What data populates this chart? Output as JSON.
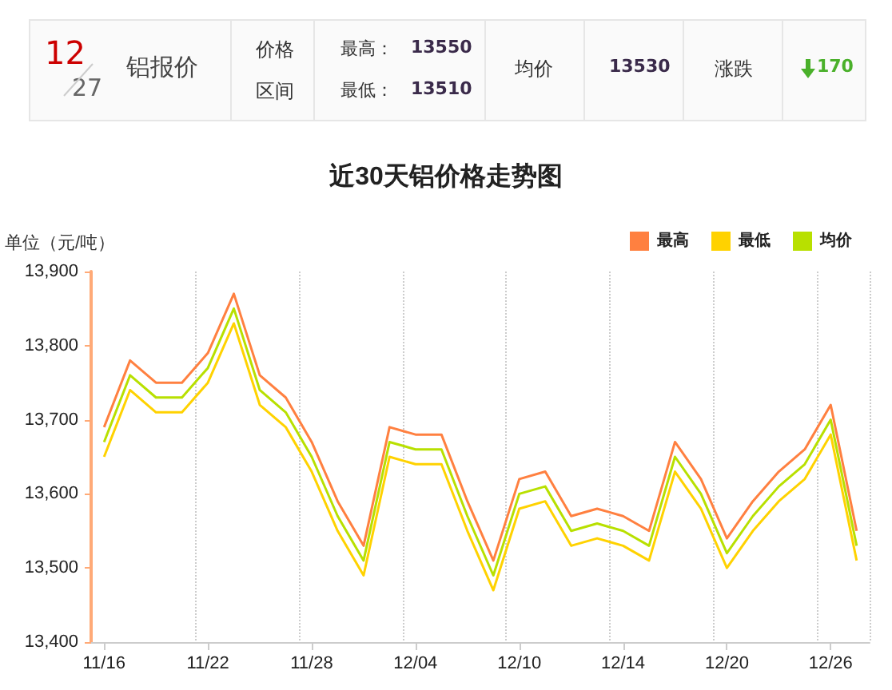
{
  "chart_data": [
    {
      "type": "other",
      "annotations": [
        "12",
        "27",
        "铝报价",
        "价格",
        "区间",
        "最高：",
        "13550",
        "最低：",
        "13510",
        "均价",
        "13530",
        "涨跌",
        "170"
      ]
    },
    {
      "type": "line",
      "title": "近30天铝价格走势图",
      "ylabel": "单位（元/吨）",
      "categories": [
        "11/16",
        null,
        null,
        null,
        "11/22",
        null,
        null,
        null,
        "11/28",
        null,
        null,
        null,
        "12/04",
        null,
        null,
        null,
        "12/10",
        null,
        null,
        null,
        "12/14",
        null,
        null,
        null,
        "12/20",
        null,
        null,
        null,
        "12/26",
        null
      ],
      "series": [
        {
          "name": "最高",
          "color": "#ff8040",
          "values": [
            13690,
            13780,
            13750,
            13750,
            13790,
            13870,
            13760,
            13730,
            13670,
            13590,
            13530,
            13690,
            13680,
            13680,
            13590,
            13510,
            13620,
            13630,
            13570,
            13580,
            13570,
            13550,
            13670,
            13620,
            13540,
            13590,
            13630,
            13660,
            13720,
            13550
          ]
        },
        {
          "name": "最低",
          "color": "#ffd200",
          "values": [
            13650,
            13740,
            13710,
            13710,
            13750,
            13830,
            13720,
            13690,
            13630,
            13550,
            13490,
            13650,
            13640,
            13640,
            13550,
            13470,
            13580,
            13590,
            13530,
            13540,
            13530,
            13510,
            13630,
            13580,
            13500,
            13550,
            13590,
            13620,
            13680,
            13510
          ]
        },
        {
          "name": "均价",
          "color": "#b8e000",
          "values": [
            13670,
            13760,
            13730,
            13730,
            13770,
            13850,
            13740,
            13710,
            13650,
            13570,
            13510,
            13670,
            13660,
            13660,
            13570,
            13490,
            13600,
            13610,
            13550,
            13560,
            13550,
            13530,
            13650,
            13600,
            13520,
            13570,
            13610,
            13640,
            13700,
            13530
          ]
        }
      ],
      "ylim": [
        13400,
        13900
      ],
      "yticks": [
        {
          "value": 13400,
          "label": "13,400"
        },
        {
          "value": 13500,
          "label": "13,500"
        },
        {
          "value": 13600,
          "label": "13,600"
        },
        {
          "value": 13700,
          "label": "13,700"
        },
        {
          "value": 13800,
          "label": "13,800"
        },
        {
          "value": 13900,
          "label": "13,900"
        }
      ],
      "grid": "x",
      "legend": "top right",
      "marker": "none",
      "line_style": "solid"
    }
  ]
}
